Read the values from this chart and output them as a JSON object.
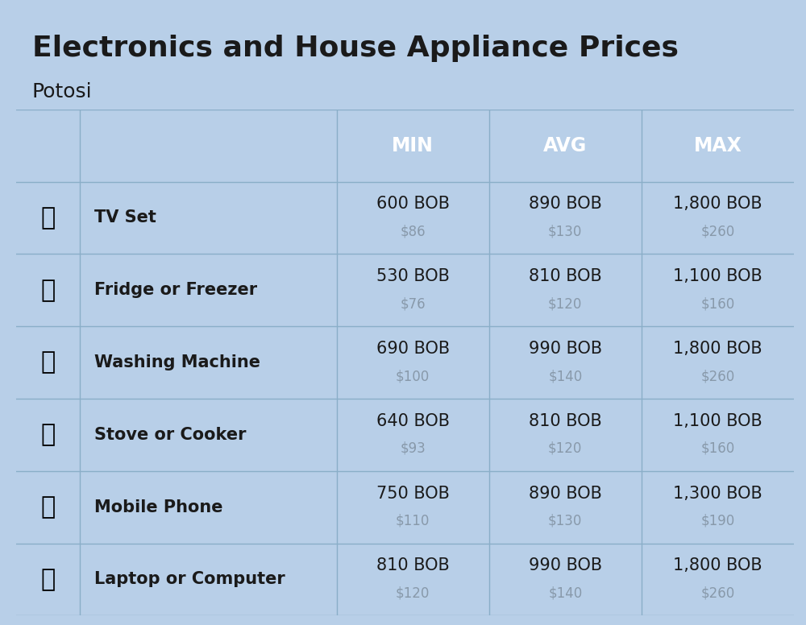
{
  "title": "Electronics and House Appliance Prices",
  "subtitle": "Potosi",
  "bg_color": "#b8cfe8",
  "header_bg_color": "#4a8ec2",
  "header_text_color": "#ffffff",
  "row_bg_even": "#b8cfe8",
  "row_bg_odd": "#c5d8ea",
  "divider_color": "#8aaec8",
  "text_dark": "#1a1a1a",
  "text_gray": "#8899aa",
  "col_headers": [
    "MIN",
    "AVG",
    "MAX"
  ],
  "items": [
    {
      "name": "TV Set",
      "min_bob": "600 BOB",
      "min_usd": "$86",
      "avg_bob": "890 BOB",
      "avg_usd": "$130",
      "max_bob": "1,800 BOB",
      "max_usd": "$260"
    },
    {
      "name": "Fridge or Freezer",
      "min_bob": "530 BOB",
      "min_usd": "$76",
      "avg_bob": "810 BOB",
      "avg_usd": "$120",
      "max_bob": "1,100 BOB",
      "max_usd": "$160"
    },
    {
      "name": "Washing Machine",
      "min_bob": "690 BOB",
      "min_usd": "$100",
      "avg_bob": "990 BOB",
      "avg_usd": "$140",
      "max_bob": "1,800 BOB",
      "max_usd": "$260"
    },
    {
      "name": "Stove or Cooker",
      "min_bob": "640 BOB",
      "min_usd": "$93",
      "avg_bob": "810 BOB",
      "avg_usd": "$120",
      "max_bob": "1,100 BOB",
      "max_usd": "$160"
    },
    {
      "name": "Mobile Phone",
      "min_bob": "750 BOB",
      "min_usd": "$110",
      "avg_bob": "890 BOB",
      "avg_usd": "$130",
      "max_bob": "1,300 BOB",
      "max_usd": "$190"
    },
    {
      "name": "Laptop or Computer",
      "min_bob": "810 BOB",
      "min_usd": "$120",
      "avg_bob": "990 BOB",
      "avg_usd": "$140",
      "max_bob": "1,800 BOB",
      "max_usd": "$260"
    }
  ],
  "flag_colors": [
    "#d52b1e",
    "#f9e300",
    "#007934"
  ],
  "title_fontsize": 26,
  "subtitle_fontsize": 18,
  "header_fontsize": 17,
  "item_name_fontsize": 15,
  "bob_fontsize": 15,
  "usd_fontsize": 12
}
